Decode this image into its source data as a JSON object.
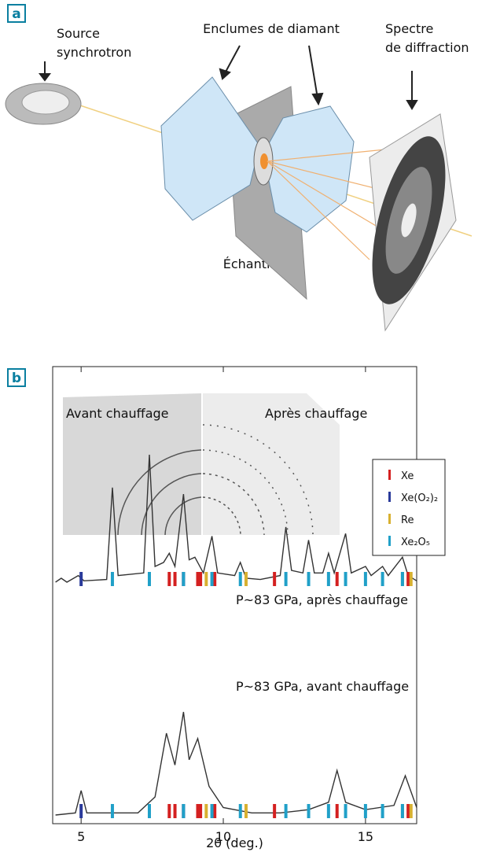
{
  "panel_a": {
    "label": "a",
    "source": [
      "Source",
      "synchrotron"
    ],
    "anvils": "Enclumes de diamant",
    "spectrum": [
      "Spectre",
      "de diffraction"
    ],
    "sample": "Échantillon"
  },
  "panel_b": {
    "label": "b",
    "before_heating": "Avant chauffage",
    "after_heating": "Après chauffage",
    "chart_data": {
      "type": "line",
      "xlabel": "2θ (deg.)",
      "xlim": [
        4,
        16.8
      ],
      "xticks": [
        5,
        10,
        15
      ],
      "series": [
        {
          "name": "P~83 GPa, après chauffage",
          "color": "#333333",
          "x": [
            4.1,
            4.3,
            4.5,
            4.9,
            5.1,
            5.9,
            6.1,
            6.3,
            7.2,
            7.4,
            7.6,
            7.9,
            8.1,
            8.3,
            8.6,
            8.8,
            9.0,
            9.3,
            9.6,
            9.8,
            10.4,
            10.6,
            10.8,
            11.3,
            12.0,
            12.2,
            12.4,
            12.8,
            13.0,
            13.2,
            13.5,
            13.7,
            13.9,
            14.3,
            14.5,
            15.0,
            15.2,
            15.6,
            15.8,
            16.3,
            16.5,
            16.8
          ],
          "values": [
            3,
            6,
            3,
            8,
            4,
            5,
            75,
            8,
            10,
            100,
            15,
            18,
            25,
            15,
            70,
            20,
            22,
            10,
            38,
            10,
            8,
            18,
            6,
            5,
            8,
            45,
            12,
            10,
            35,
            10,
            10,
            25,
            10,
            40,
            10,
            15,
            8,
            15,
            8,
            22,
            8,
            4
          ]
        },
        {
          "name": "P~83 GPa, avant chauffage",
          "color": "#333333",
          "x": [
            4.1,
            4.8,
            5.0,
            5.2,
            7.0,
            7.6,
            8.0,
            8.3,
            8.6,
            8.8,
            9.1,
            9.5,
            10.0,
            11.0,
            12.0,
            13.0,
            13.7,
            14.0,
            14.3,
            15.0,
            16.0,
            16.4,
            16.8
          ],
          "values": [
            3,
            5,
            26,
            5,
            5,
            20,
            80,
            50,
            100,
            55,
            75,
            30,
            10,
            5,
            5,
            8,
            15,
            45,
            15,
            8,
            12,
            40,
            10
          ]
        }
      ],
      "phases": [
        {
          "name": "Xe",
          "color": "#d42020",
          "x": [
            8.1,
            8.3,
            8.6,
            9.1,
            9.2,
            9.7,
            11.8,
            14.0,
            16.5
          ]
        },
        {
          "name": "Xe(O₂)₂",
          "color": "#2a3a9a",
          "x": [
            5.0,
            8.6
          ]
        },
        {
          "name": "Re",
          "color": "#d8b030",
          "x": [
            9.4,
            10.8,
            16.3,
            16.6
          ]
        },
        {
          "name": "Xe₂O₅",
          "color": "#20a0c8",
          "x": [
            6.1,
            7.4,
            8.6,
            9.6,
            10.6,
            12.2,
            13.0,
            13.7,
            14.3,
            15.0,
            15.6,
            16.3
          ]
        }
      ]
    }
  }
}
